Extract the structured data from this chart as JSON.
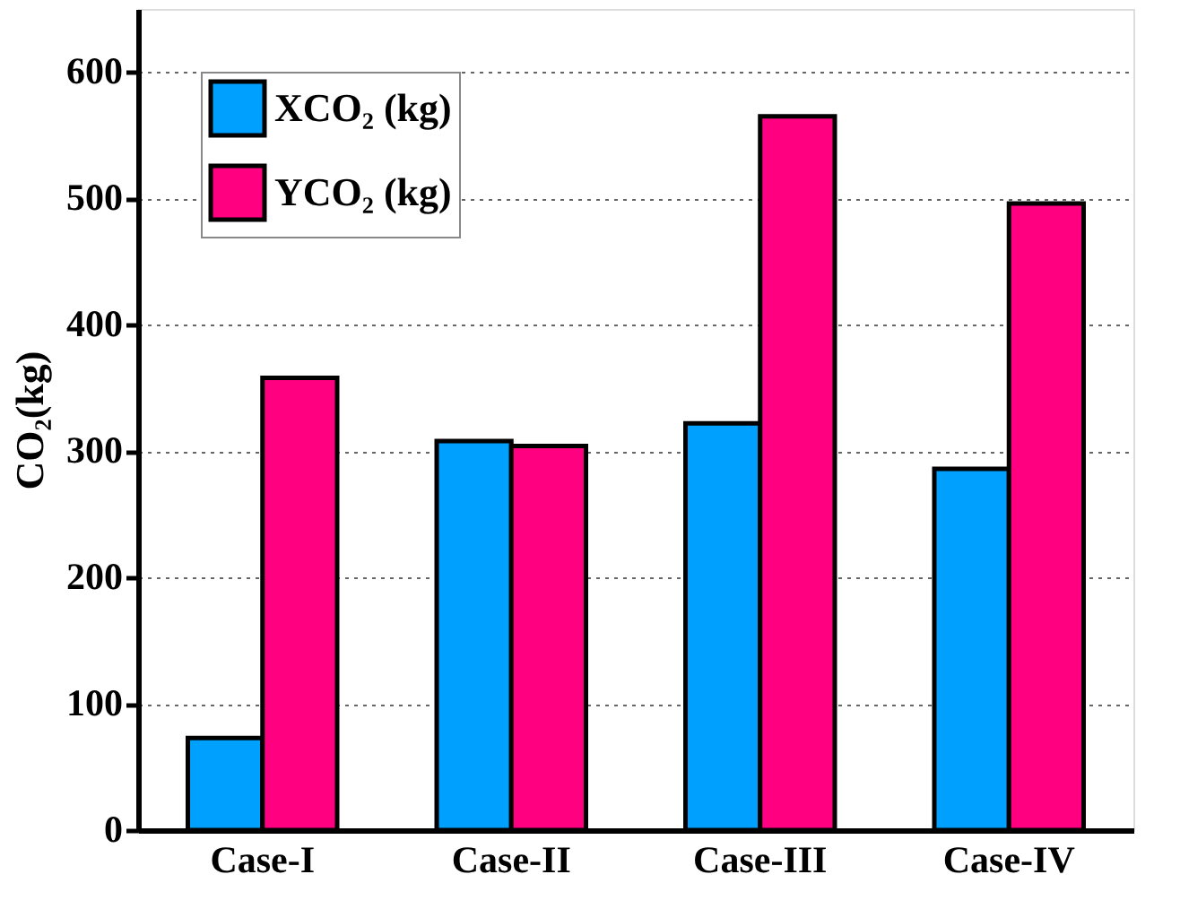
{
  "chart_data": {
    "type": "bar",
    "ylabel": "CO₂(kg)",
    "categories": [
      "Case-I",
      "Case-II",
      "Case-III",
      "Case-IV"
    ],
    "series": [
      {
        "name": "XCO₂ (kg)",
        "color": "#00a0ff",
        "values": [
          73,
          308,
          322,
          286
        ]
      },
      {
        "name": "YCO₂ (kg)",
        "color": "#ff0080",
        "values": [
          358,
          304,
          565,
          496
        ]
      }
    ],
    "ylim": [
      0,
      650
    ],
    "yticks": [
      0,
      100,
      200,
      300,
      400,
      500,
      600
    ],
    "grid": "y",
    "legend": "top left"
  }
}
